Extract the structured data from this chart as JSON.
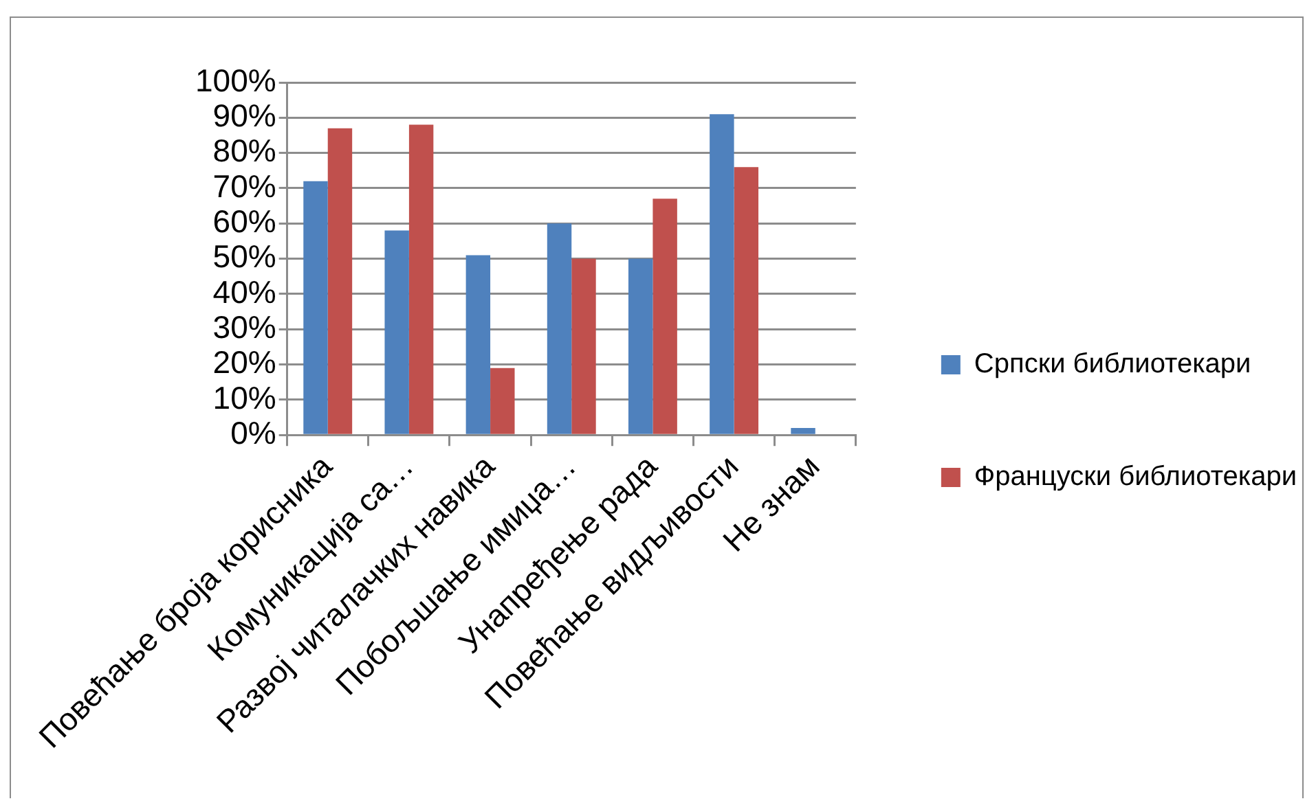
{
  "chart_data": {
    "type": "bar",
    "categories": [
      "Повећање броја корисника",
      "Комуникација са…",
      "Развој читалачких навика",
      "Побољшање имиџа…",
      "Унапређење рада",
      "Повећање видљивости",
      "Не знам"
    ],
    "series": [
      {
        "name": "Српски библиотекари",
        "color": "#4f81bd",
        "values": [
          72,
          58,
          51,
          60,
          50,
          91,
          2
        ]
      },
      {
        "name": "Француски библиотекари",
        "color": "#c0504d",
        "values": [
          87,
          88,
          19,
          50,
          67,
          76,
          0
        ]
      }
    ],
    "ylim": [
      0,
      100
    ],
    "yticks": [
      {
        "value": 0,
        "label": "0%"
      },
      {
        "value": 10,
        "label": "10%"
      },
      {
        "value": 20,
        "label": "20%"
      },
      {
        "value": 30,
        "label": "30%"
      },
      {
        "value": 40,
        "label": "40%"
      },
      {
        "value": 50,
        "label": "50%"
      },
      {
        "value": 60,
        "label": "60%"
      },
      {
        "value": 70,
        "label": "70%"
      },
      {
        "value": 80,
        "label": "80%"
      },
      {
        "value": 90,
        "label": "90%"
      },
      {
        "value": 100,
        "label": "100%"
      }
    ],
    "grid": "y",
    "legend": "right"
  }
}
